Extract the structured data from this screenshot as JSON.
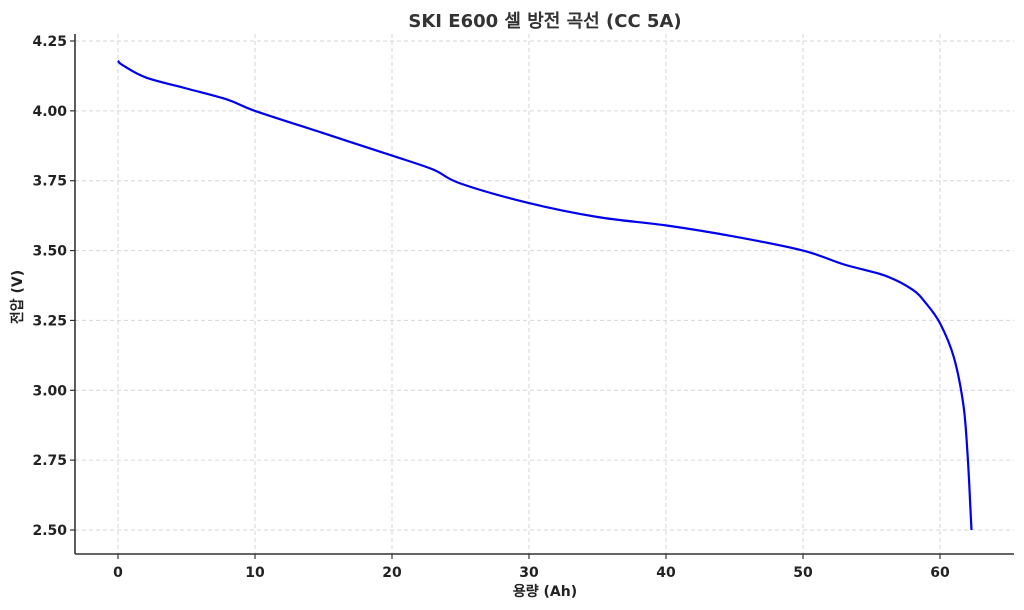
{
  "chart_data": {
    "type": "line",
    "title": "SKI E600 셀 방전 곡선 (CC 5A)",
    "xlabel": "용량 (Ah)",
    "ylabel": "전압 (V)",
    "xlim": [
      -3.1,
      65.5
    ],
    "ylim": [
      2.415,
      4.25
    ],
    "x_ticks": [
      0,
      10,
      20,
      30,
      40,
      50,
      60
    ],
    "x_tick_labels": [
      "0",
      "10",
      "20",
      "30",
      "40",
      "50",
      "60"
    ],
    "y_ticks": [
      2.5,
      2.75,
      3.0,
      3.25,
      3.5,
      3.75,
      4.0,
      4.25
    ],
    "y_tick_labels": [
      "2.50",
      "2.75",
      "3.00",
      "3.25",
      "3.50",
      "3.75",
      "4.00",
      "4.25"
    ],
    "grid": true,
    "legend": null,
    "series": [
      {
        "name": "방전 곡선",
        "color": "#0000ee",
        "x": [
          0,
          0.3,
          2,
          5,
          8,
          10,
          15,
          20,
          23,
          25,
          30,
          35,
          40,
          45,
          50,
          53,
          56,
          58,
          59,
          60,
          61,
          61.7,
          62,
          62.2,
          62.3
        ],
        "y": [
          4.18,
          4.165,
          4.12,
          4.08,
          4.04,
          4.0,
          3.92,
          3.84,
          3.79,
          3.74,
          3.67,
          3.62,
          3.59,
          3.55,
          3.5,
          3.45,
          3.41,
          3.36,
          3.31,
          3.24,
          3.12,
          2.95,
          2.78,
          2.6,
          2.5
        ]
      }
    ]
  },
  "style": {
    "line_color": "#0000ee",
    "grid_color": "#d6d6d6",
    "spine_color": "#333333"
  }
}
